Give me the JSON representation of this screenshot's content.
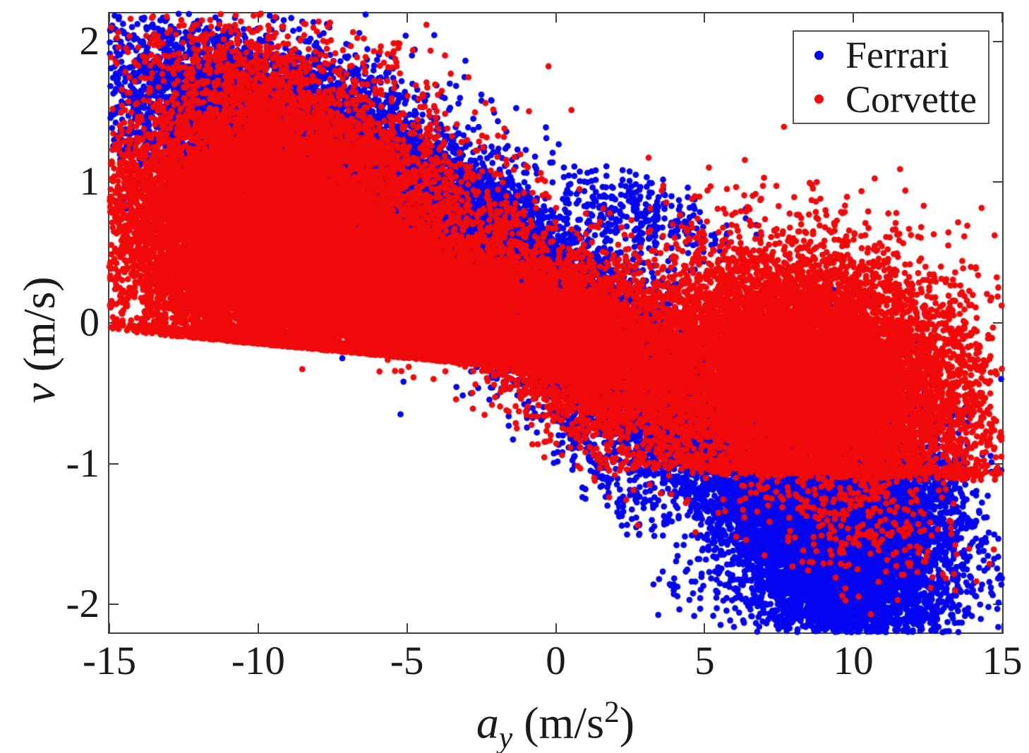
{
  "figure": {
    "background": "#ffffff"
  },
  "axes_style": {
    "color": "#424242",
    "tick_len": 13,
    "line_width": 2
  },
  "chart_data": {
    "type": "scatter",
    "title": "",
    "xlabel": "a_y (m/s^2)",
    "ylabel": "v (m/s)",
    "xlabel_parts": {
      "var": "a",
      "sub": "y",
      "unit_pre": " (m/s",
      "sup": "2",
      "unit_post": ")"
    },
    "ylabel_parts": {
      "var": "v",
      "unit": " (m/s)"
    },
    "xlim": [
      -15,
      15
    ],
    "ylim": [
      -2.2,
      2.2
    ],
    "xticks": [
      -15,
      -10,
      -5,
      0,
      5,
      10,
      15
    ],
    "xtick_labels": [
      "-15",
      "-10",
      "-5",
      "0",
      "5",
      "10",
      "15"
    ],
    "yticks": [
      -2,
      -1,
      0,
      1,
      2
    ],
    "ytick_labels": [
      "-2",
      "-1",
      "0",
      "1",
      "2"
    ],
    "grid": false,
    "legend": {
      "position": "top-right",
      "entries": [
        {
          "label": "Ferrari",
          "color": "#0505F0"
        },
        {
          "label": "Corvette",
          "color": "#F00A0A"
        }
      ]
    },
    "marker": "filled-circle",
    "note": "Tens of thousands of overplotted points; clouds reproduced generatively from gaussian clusters (c=center [ay,v], u/v = 1-sigma axis vectors in data units, floor = hard lower edge v = f0 + f1*ay, pairs = vertically-doubled trajectory samples).",
    "render": {
      "seed": 1337,
      "marker_radius_px": 4.4,
      "overhang": 8,
      "pair_dv": 0.068
    },
    "series": [
      {
        "name": "Ferrari",
        "color": "#0505F0",
        "approx_points": 32400,
        "clusters": [
          {
            "n": 9000,
            "c": [
              -8.3,
              1.18
            ],
            "u": [
              3.0,
              -0.27
            ],
            "v": [
              0.25,
              0.27
            ]
          },
          {
            "n": 1600,
            "c": [
              -8.3,
              1.18
            ],
            "u": [
              3.6,
              -0.33
            ],
            "v": [
              0.3,
              0.43
            ]
          },
          {
            "n": 4500,
            "c": [
              -1.8,
              0.33
            ],
            "u": [
              1.7,
              -0.22
            ],
            "v": [
              0.1,
              0.27
            ]
          },
          {
            "n": 4500,
            "c": [
              2.6,
              -0.35
            ],
            "u": [
              2.0,
              -0.33
            ],
            "v": [
              0.15,
              0.3
            ]
          },
          {
            "n": 10000,
            "c": [
              9.1,
              -1.3
            ],
            "u": [
              1.9,
              -0.16
            ],
            "v": [
              0.15,
              0.4
            ]
          },
          {
            "n": 1600,
            "c": [
              9.2,
              -1.35
            ],
            "u": [
              2.3,
              -0.2
            ],
            "v": [
              0.2,
              0.52
            ]
          },
          {
            "n": 900,
            "c": [
              9.6,
              -2.0
            ],
            "u": [
              1.5,
              -0.1
            ],
            "v": [
              0,
              0.18
            ]
          },
          {
            "n": 150,
            "c": [
              2.7,
              0.74
            ],
            "u": [
              1.5,
              -0.06
            ],
            "v": [
              0,
              0.14
            ],
            "pairs": true
          },
          {
            "n": 120,
            "c": [
              0.8,
              -0.85
            ],
            "u": [
              1.6,
              -0.35
            ],
            "v": [
              0,
              0.18
            ],
            "pairs": true
          },
          {
            "n": 60,
            "c": [
              12.9,
              -1.2
            ],
            "u": [
              0.8,
              -0.1
            ],
            "v": [
              0,
              0.3
            ],
            "pairs": true
          }
        ]
      },
      {
        "name": "Corvette",
        "color": "#F00A0A",
        "approx_points": 39800,
        "clusters": [
          {
            "n": 10000,
            "c": [
              -10.3,
              0.55
            ],
            "u": [
              2.2,
              -0.12
            ],
            "v": [
              0.25,
              0.42
            ],
            "floor": [
              -0.35,
              -0.02
            ]
          },
          {
            "n": 1800,
            "c": [
              -10.2,
              0.6
            ],
            "u": [
              2.7,
              -0.16
            ],
            "v": [
              0.3,
              0.58
            ],
            "floor": [
              -0.35,
              -0.02
            ]
          },
          {
            "n": 160,
            "c": [
              -10.6,
              1.8
            ],
            "u": [
              1.9,
              -0.1
            ],
            "v": [
              0,
              0.18
            ]
          },
          {
            "n": 30,
            "c": [
              -4.6,
              1.75
            ],
            "u": [
              1.6,
              -0.12
            ],
            "v": [
              0,
              0.17
            ]
          },
          {
            "n": 8000,
            "c": [
              -4.3,
              0.08
            ],
            "u": [
              2.5,
              -0.15
            ],
            "v": [
              0.1,
              0.28
            ],
            "floor": [
              -0.35,
              -0.02
            ]
          },
          {
            "n": 4000,
            "c": [
              0.8,
              -0.15
            ],
            "u": [
              1.9,
              -0.18
            ],
            "v": [
              0.1,
              0.3
            ]
          },
          {
            "n": 11000,
            "c": [
              8.4,
              -0.38
            ],
            "u": [
              2.6,
              -0.1
            ],
            "v": [
              0.25,
              0.4
            ],
            "floor": [
              -1.02,
              -0.005
            ]
          },
          {
            "n": 1600,
            "c": [
              8.4,
              -0.4
            ],
            "u": [
              3.1,
              -0.14
            ],
            "v": [
              0.3,
              0.52
            ],
            "floor": [
              -1.05,
              -0.005
            ]
          },
          {
            "n": 600,
            "c": [
              9.3,
              -1.15
            ],
            "u": [
              2.0,
              -0.18
            ],
            "v": [
              0,
              0.3
            ]
          },
          {
            "n": 2600,
            "c": [
              -7.3,
              1.15
            ],
            "u": [
              2.9,
              -0.28
            ],
            "v": [
              0.1,
              0.33
            ]
          },
          {
            "n": 40,
            "c": [
              13.8,
              -0.6
            ],
            "u": [
              0.55,
              -0.05
            ],
            "v": [
              0,
              0.28
            ]
          },
          {
            "n": 15,
            "c": [
              -5.0,
              -0.32
            ],
            "u": [
              2.5,
              -0.1
            ],
            "v": [
              0,
              0.1
            ]
          }
        ]
      }
    ]
  }
}
